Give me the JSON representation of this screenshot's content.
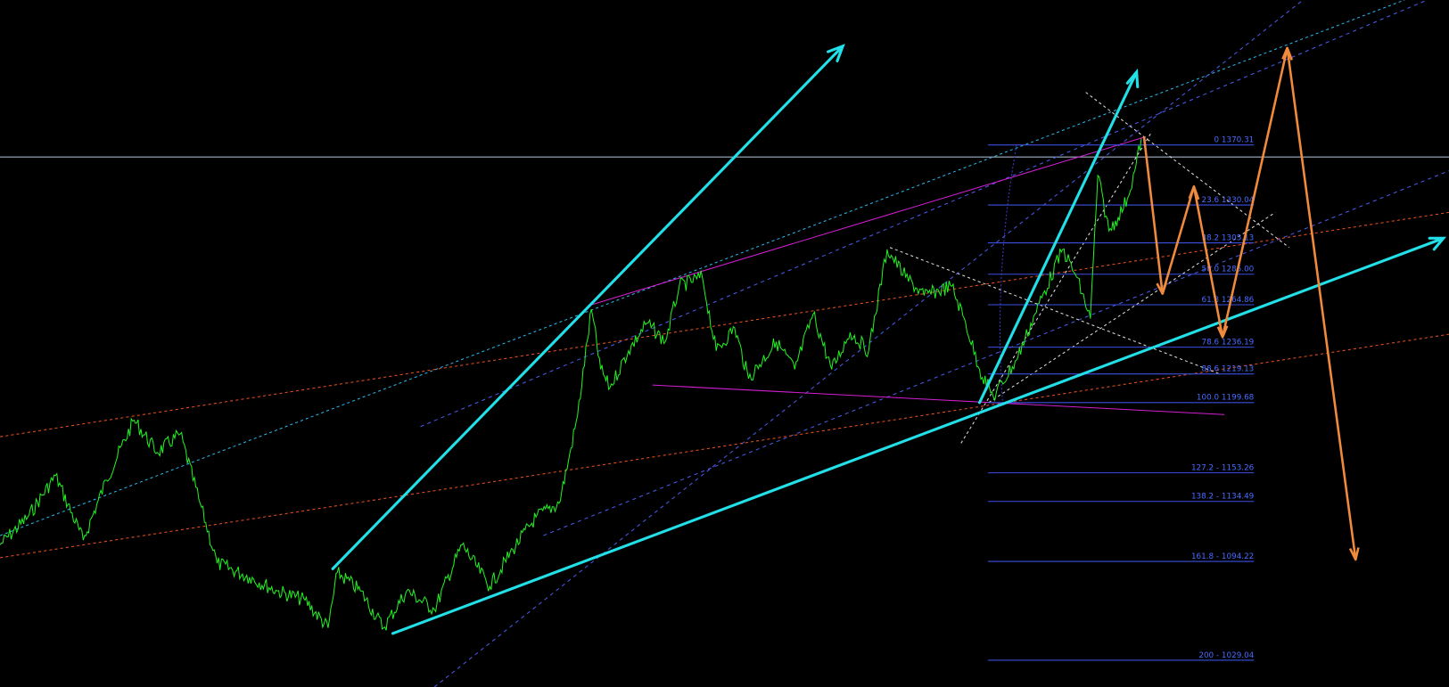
{
  "fibonacci_levels": [
    {
      "label": "0 1370.31"
    },
    {
      "label": "23.6 1330.04"
    },
    {
      "label": "38.2 1305.13"
    },
    {
      "label": "50.0 1285.00"
    },
    {
      "label": "61.8 1264.86"
    },
    {
      "label": "78.6 1236.19"
    },
    {
      "label": "88.6 1219.13"
    },
    {
      "label": "100.0 1199.68"
    },
    {
      "label": "127.2 - 1153.26"
    },
    {
      "label": "138.2 - 1134.49"
    },
    {
      "label": "161.8 - 1094.22"
    },
    {
      "label": "200 - 1029.04"
    }
  ]
}
